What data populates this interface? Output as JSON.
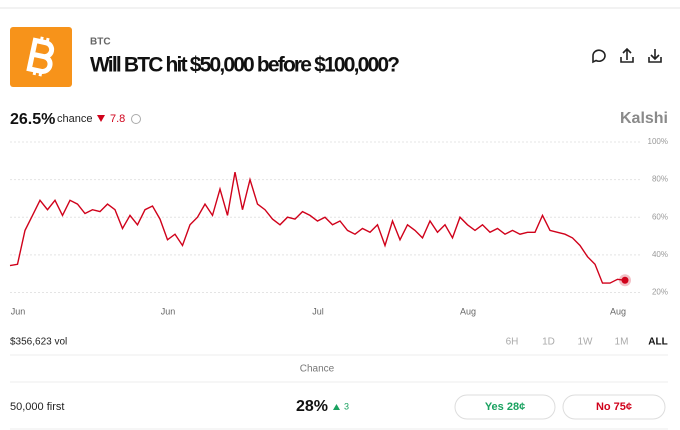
{
  "header": {
    "category": "BTC",
    "title": "Will BTC hit $50,000 before $100,000?"
  },
  "summary": {
    "chance": "26.5%",
    "chance_label": "chance",
    "change": "7.8",
    "brand": "Kalshi"
  },
  "chart_data": {
    "type": "line",
    "color": "#d0021b",
    "x_labels": [
      "Jun",
      "Jun",
      "Jul",
      "Aug",
      "Aug"
    ],
    "values": [
      34.3,
      35,
      53,
      61,
      69,
      64,
      69,
      61,
      69,
      67,
      62,
      64,
      63,
      67,
      64,
      54,
      61,
      56,
      64,
      66,
      59,
      48,
      51,
      45,
      56,
      60,
      67,
      61,
      75,
      61,
      84,
      64,
      80,
      67,
      64,
      59,
      56,
      60,
      59,
      63,
      61,
      58,
      60,
      56,
      58,
      53,
      51,
      54,
      52,
      56,
      45,
      58,
      48,
      56,
      53,
      49,
      58,
      52,
      56,
      49,
      60,
      56,
      53,
      56,
      52,
      54,
      51,
      53,
      51,
      52,
      52,
      61,
      53,
      52,
      51,
      49,
      45,
      39,
      35,
      25,
      25,
      27,
      26.5
    ],
    "ylim": [
      16,
      100
    ],
    "yticks": [
      {
        "value": 100,
        "label": "100%"
      },
      {
        "value": 80,
        "label": "80%"
      },
      {
        "value": 60,
        "label": "60%"
      },
      {
        "value": 40,
        "label": "40%"
      },
      {
        "value": 20,
        "label": "20%"
      }
    ],
    "grid": true
  },
  "footer": {
    "volume": "$356,623 vol",
    "ranges": [
      "6H",
      "1D",
      "1W",
      "1M",
      "ALL"
    ],
    "selected_range": "ALL"
  },
  "market": {
    "column_header": "Chance",
    "rows": [
      {
        "label": "50,000 first",
        "chance": "28%",
        "change": "3",
        "yes": "Yes 28¢",
        "no": "No 75¢"
      }
    ]
  }
}
